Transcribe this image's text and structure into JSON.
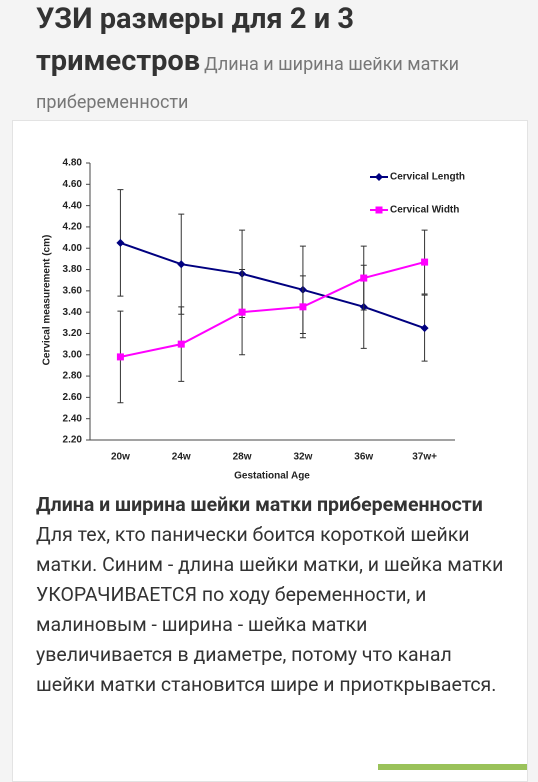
{
  "header": {
    "title": "УЗИ размеры для 2 и 3 триместров",
    "subtitle": "Длина и ширина шейки матки прибеременности"
  },
  "chart_data": {
    "type": "line",
    "x_label": "Gestational Age",
    "y_label": "Cervical measurement (cm)",
    "categories": [
      "20w",
      "24w",
      "28w",
      "32w",
      "36w",
      "37w+"
    ],
    "series": [
      {
        "name": "Cervical Length",
        "color": "#000080",
        "marker": "diamond",
        "values": [
          4.05,
          3.85,
          3.76,
          3.61,
          3.45,
          3.25
        ],
        "errors": [
          0.5,
          0.47,
          0.41,
          0.41,
          0.39,
          0.31
        ]
      },
      {
        "name": "Cervical Width",
        "color": "#ff00ff",
        "marker": "square",
        "values": [
          2.98,
          3.1,
          3.4,
          3.45,
          3.72,
          3.87
        ],
        "errors": [
          0.43,
          0.35,
          0.4,
          0.29,
          0.3,
          0.3
        ]
      }
    ],
    "ylim": [
      2.2,
      4.8
    ],
    "yticks": [
      {
        "value": 2.2,
        "label": "2.20"
      },
      {
        "value": 2.4,
        "label": "2.40"
      },
      {
        "value": 2.6,
        "label": "2.60"
      },
      {
        "value": 2.8,
        "label": "2.80"
      },
      {
        "value": 3.0,
        "label": "3.00"
      },
      {
        "value": 3.2,
        "label": "3.20"
      },
      {
        "value": 3.4,
        "label": "3.40"
      },
      {
        "value": 3.6,
        "label": "3.60"
      },
      {
        "value": 3.8,
        "label": "3.80"
      },
      {
        "value": 4.0,
        "label": "4.00"
      },
      {
        "value": 4.2,
        "label": "4.20"
      },
      {
        "value": 4.4,
        "label": "4.40"
      },
      {
        "value": 4.6,
        "label": "4.60"
      },
      {
        "value": 4.8,
        "label": "4.80"
      }
    ],
    "grid": false,
    "legend": "upper right"
  },
  "caption": {
    "title": "Длина и ширина шейки матки прибеременности",
    "text": "Для тех, кто панически боится короткой шейки матки. Синим - длина шейки матки, и шейка матки УКОРАЧИВАЕТСЯ по ходу беременности, и малиновым - ширина - шейка матки увеличивается в диаметре, потому что канал шейки матки становится шире и приоткрывается."
  }
}
